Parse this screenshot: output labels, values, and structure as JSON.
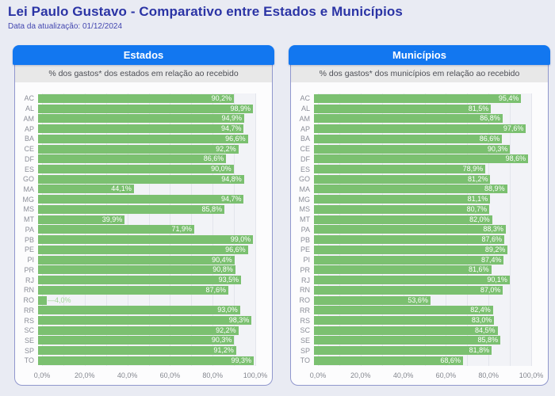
{
  "page": {
    "title": "Lei Paulo Gustavo - Comparativo entre Estados e Municípios",
    "update_label": "Data da atualização: 01/12/2024"
  },
  "colors": {
    "page_bg": "#e9ebf3",
    "title_blue": "#2b34a5",
    "header_blue": "#1277f0",
    "bar_green": "#7bc070",
    "panel_border": "#9097cd",
    "subtitle_bar_bg": "#e8e8e8",
    "outside_label_green": "#a3d699"
  },
  "chart_data": [
    {
      "type": "bar",
      "orientation": "horizontal",
      "title": "Estados",
      "subtitle": "% dos gastos* dos estados em relação ao recebido",
      "xlim": [
        0,
        100
      ],
      "grid": true,
      "x_ticks": [
        "0,0%",
        "20,0%",
        "40,0%",
        "60,0%",
        "80,0%",
        "100,0%"
      ],
      "categories": [
        "AC",
        "AL",
        "AM",
        "AP",
        "BA",
        "CE",
        "DF",
        "ES",
        "GO",
        "MA",
        "MG",
        "MS",
        "MT",
        "PA",
        "PB",
        "PE",
        "PI",
        "PR",
        "RJ",
        "RN",
        "RO",
        "RR",
        "RS",
        "SC",
        "SE",
        "SP",
        "TO"
      ],
      "values": [
        90.2,
        98.9,
        94.9,
        94.7,
        96.6,
        92.2,
        86.6,
        90.0,
        94.8,
        44.1,
        94.7,
        85.8,
        39.9,
        71.9,
        99.0,
        96.6,
        90.4,
        90.8,
        93.5,
        87.6,
        4.0,
        93.0,
        98.3,
        92.2,
        90.3,
        91.2,
        99.3
      ],
      "value_labels": [
        "90,2%",
        "98,9%",
        "94,9%",
        "94,7%",
        "96,6%",
        "92,2%",
        "86,6%",
        "90,0%",
        "94,8%",
        "44,1%",
        "94,7%",
        "85,8%",
        "39,9%",
        "71,9%",
        "99,0%",
        "96,6%",
        "90,4%",
        "90,8%",
        "93,5%",
        "87,6%",
        "4,0%",
        "93,0%",
        "98,3%",
        "92,2%",
        "90,3%",
        "91,2%",
        "99,3%"
      ]
    },
    {
      "type": "bar",
      "orientation": "horizontal",
      "title": "Municípios",
      "subtitle": "% dos gastos* dos municípios em relação ao recebido",
      "xlim": [
        0,
        100
      ],
      "grid": true,
      "x_ticks": [
        "0,0%",
        "20,0%",
        "40,0%",
        "60,0%",
        "80,0%",
        "100,0%"
      ],
      "categories": [
        "AC",
        "AL",
        "AM",
        "AP",
        "BA",
        "CE",
        "DF",
        "ES",
        "GO",
        "MA",
        "MG",
        "MS",
        "MT",
        "PA",
        "PB",
        "PE",
        "PI",
        "PR",
        "RJ",
        "RN",
        "RO",
        "RR",
        "RS",
        "SC",
        "SE",
        "SP",
        "TO"
      ],
      "values": [
        95.4,
        81.5,
        86.8,
        97.6,
        86.6,
        90.3,
        98.6,
        78.9,
        81.2,
        88.9,
        81.1,
        80.7,
        82.0,
        88.3,
        87.6,
        89.2,
        87.4,
        81.6,
        90.1,
        87.0,
        53.6,
        82.4,
        83.0,
        84.5,
        85.8,
        81.8,
        68.6
      ],
      "value_labels": [
        "95,4%",
        "81,5%",
        "86,8%",
        "97,6%",
        "86,6%",
        "90,3%",
        "98,6%",
        "78,9%",
        "81,2%",
        "88,9%",
        "81,1%",
        "80,7%",
        "82,0%",
        "88,3%",
        "87,6%",
        "89,2%",
        "87,4%",
        "81,6%",
        "90,1%",
        "87,0%",
        "53,6%",
        "82,4%",
        "83,0%",
        "84,5%",
        "85,8%",
        "81,8%",
        "68,6%"
      ]
    }
  ]
}
